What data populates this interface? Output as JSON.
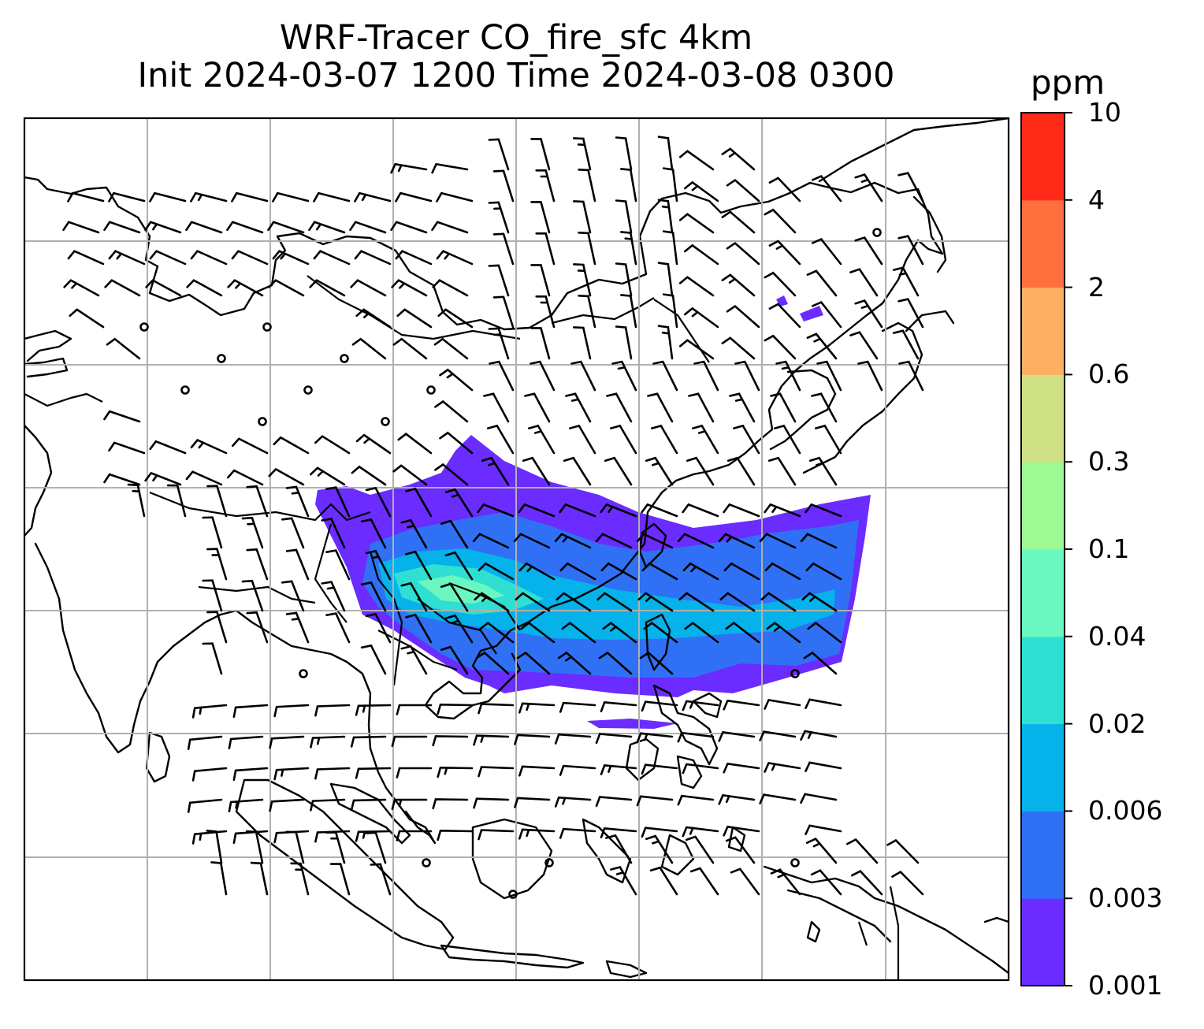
{
  "title": {
    "line1": "WRF-Tracer CO_fire_sfc 4km",
    "line2": "Init 2024-03-07 1200 Time 2024-03-08 0300"
  },
  "colorbar": {
    "unit": "ppm",
    "levels": [
      "0.001",
      "0.003",
      "0.006",
      "0.02",
      "0.04",
      "0.1",
      "0.3",
      "0.6",
      "2",
      "4",
      "10"
    ],
    "colors": [
      "#6a2cff",
      "#3070f5",
      "#05b2ea",
      "#2fe0d2",
      "#6bf7c2",
      "#9cf994",
      "#cfe184",
      "#fdb062",
      "#ff6e3d",
      "#ff2a18"
    ]
  },
  "map": {
    "gridlines": true,
    "features": [
      "coastlines",
      "country-borders",
      "wind-barbs",
      "CO tracer plume"
    ],
    "plume_color_low": "#6a2cff",
    "plume_color_mid": "#3070f5",
    "plume_color_core": "#2fe0d2"
  }
}
